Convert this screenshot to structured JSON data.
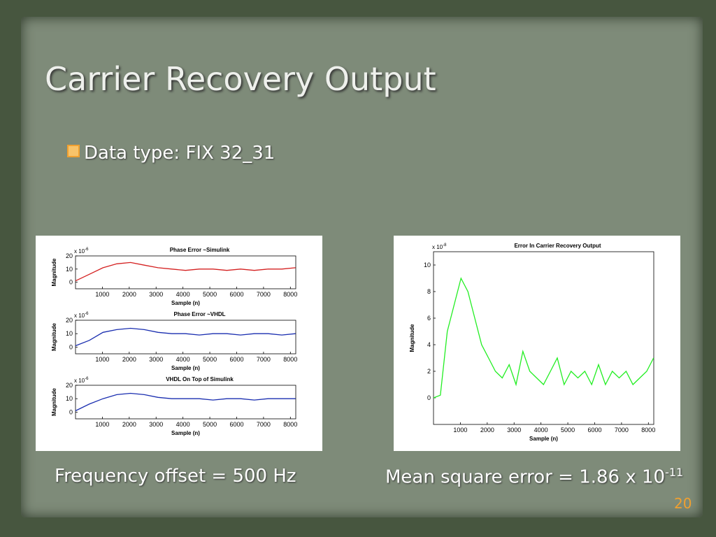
{
  "title": "Carrier Recovery Output",
  "bullet": "Data type: FIX 32_31",
  "captions": {
    "left": "Frequency offset =  500 Hz",
    "right": "Mean square error =  1.86 x 10",
    "right_exponent": "-11"
  },
  "page_number": "20",
  "chart_data": [
    {
      "type": "line",
      "title": "Phase Error ~Simulink",
      "xlabel": "Sample (n)",
      "ylabel": "Magnitude",
      "y_multiplier": "x 10",
      "y_exponent": "-6",
      "color": "#d42020",
      "x": [
        0,
        512,
        1024,
        1536,
        2048,
        2560,
        3072,
        3584,
        4096,
        4608,
        5120,
        5632,
        6144,
        6656,
        7168,
        7680,
        8192
      ],
      "values": [
        1,
        6,
        11,
        14,
        15,
        13,
        11,
        10,
        9,
        10,
        10,
        9,
        10,
        9,
        10,
        10,
        11
      ],
      "xlim": [
        0,
        8200
      ],
      "xticks": [
        1000,
        2000,
        3000,
        4000,
        5000,
        6000,
        7000,
        8000
      ],
      "ylim": [
        -5,
        20
      ],
      "yticks": [
        0,
        10,
        20
      ]
    },
    {
      "type": "line",
      "title": "Phase Error ~VHDL",
      "xlabel": "Sample (n)",
      "ylabel": "Magnitude",
      "y_multiplier": "x 10",
      "y_exponent": "-6",
      "color": "#1a2eb0",
      "x": [
        0,
        512,
        1024,
        1536,
        2048,
        2560,
        3072,
        3584,
        4096,
        4608,
        5120,
        5632,
        6144,
        6656,
        7168,
        7680,
        8192
      ],
      "values": [
        1,
        5,
        11,
        13,
        14,
        13,
        11,
        10,
        10,
        9,
        10,
        10,
        9,
        10,
        10,
        9,
        10
      ],
      "xlim": [
        0,
        8200
      ],
      "xticks": [
        1000,
        2000,
        3000,
        4000,
        5000,
        6000,
        7000,
        8000
      ],
      "ylim": [
        -5,
        20
      ],
      "yticks": [
        0,
        10,
        20
      ]
    },
    {
      "type": "line",
      "title": "VHDL On Top of Simulink",
      "xlabel": "Sample (n)",
      "ylabel": "Magnitude",
      "y_multiplier": "x 10",
      "y_exponent": "-6",
      "color": "#1a2eb0",
      "x": [
        0,
        512,
        1024,
        1536,
        2048,
        2560,
        3072,
        3584,
        4096,
        4608,
        5120,
        5632,
        6144,
        6656,
        7168,
        7680,
        8192
      ],
      "values": [
        1,
        6,
        10,
        13,
        14,
        13,
        11,
        10,
        10,
        10,
        9,
        10,
        10,
        9,
        10,
        10,
        10
      ],
      "xlim": [
        0,
        8200
      ],
      "xticks": [
        1000,
        2000,
        3000,
        4000,
        5000,
        6000,
        7000,
        8000
      ],
      "ylim": [
        -5,
        20
      ],
      "yticks": [
        0,
        10,
        20
      ]
    },
    {
      "type": "line",
      "title": "Error In Carrier Recovery Output",
      "xlabel": "Sample (n)",
      "ylabel": "Magnitude",
      "y_multiplier": "x 10",
      "y_exponent": "-8",
      "color": "#22ee22",
      "x": [
        0,
        256,
        512,
        768,
        1024,
        1280,
        1536,
        1792,
        2048,
        2304,
        2560,
        2816,
        3072,
        3328,
        3584,
        3840,
        4096,
        4352,
        4608,
        4864,
        5120,
        5376,
        5632,
        5888,
        6144,
        6400,
        6656,
        6912,
        7168,
        7424,
        7680,
        7936,
        8192
      ],
      "values": [
        0,
        0.2,
        5,
        7,
        9,
        8,
        6,
        4,
        3,
        2,
        1.5,
        2.5,
        1,
        3.5,
        2,
        1.5,
        1,
        2,
        3,
        1,
        2,
        1.5,
        2,
        1,
        2.5,
        1,
        2,
        1.5,
        2,
        1,
        1.5,
        2,
        3
      ],
      "xlim": [
        0,
        8200
      ],
      "xticks": [
        1000,
        2000,
        3000,
        4000,
        5000,
        6000,
        7000,
        8000
      ],
      "ylim": [
        -2,
        11
      ],
      "yticks": [
        0,
        2,
        4,
        6,
        8,
        10
      ]
    }
  ]
}
